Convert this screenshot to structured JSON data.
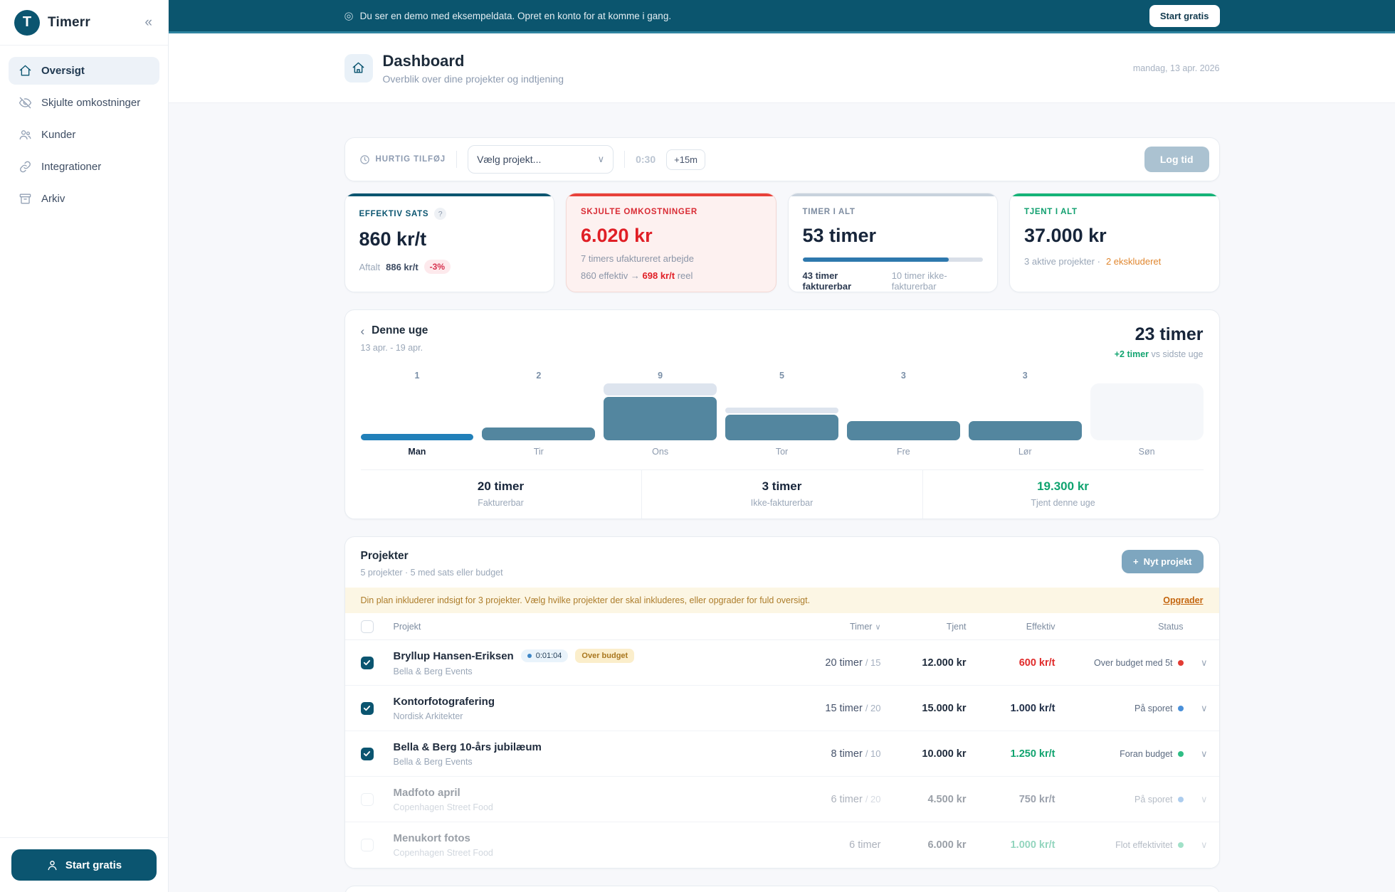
{
  "icons": {
    "collapse": "«",
    "eye_demo": "◎",
    "chevron_down": "∨",
    "sort_down": "∨",
    "back": "‹",
    "plus": "+",
    "dot": "●"
  },
  "banner": {
    "message": "Du ser en demo med eksempeldata. Opret en konto for at komme i gang.",
    "cta": "Start gratis"
  },
  "sidebar": {
    "logo_letter": "T",
    "brand": "Timerr",
    "items": [
      {
        "label": "Oversigt",
        "icon": "home",
        "active": true
      },
      {
        "label": "Skjulte omkostninger",
        "icon": "eye-off",
        "active": false
      },
      {
        "label": "Kunder",
        "icon": "users",
        "active": false
      },
      {
        "label": "Integrationer",
        "icon": "link",
        "active": false
      },
      {
        "label": "Arkiv",
        "icon": "archive",
        "active": false
      }
    ],
    "cta": "Start gratis"
  },
  "header": {
    "title": "Dashboard",
    "subtitle": "Overblik over dine projekter og indtjening",
    "date": "mandag, 13 apr. 2026"
  },
  "quick_add": {
    "label": "HURTIG TILFØJ",
    "project_select": "Vælg projekt...",
    "duration": "0:30",
    "increment": "+15m",
    "submit": "Log tid"
  },
  "stats": {
    "0": {
      "label": "EFFEKTIV SATS",
      "help": "?",
      "value": "860 kr/t",
      "accent": "#0b5570",
      "foot_prefix": "Aftalt",
      "foot_agreed": "886 kr/t",
      "foot_delta": "-3%"
    },
    "1": {
      "label": "SKJULTE OMKOSTNINGER",
      "value": "6.020 kr",
      "accent": "#e8413a",
      "line1": "7 timers ufaktureret arbejde",
      "line2_prefix": "860 effektiv",
      "line2_arrow": "→",
      "line2_value": "698 kr/t",
      "line2_suffix": "reel"
    },
    "2": {
      "label": "TIMER I ALT",
      "value": "53 timer",
      "accent": "#c8d2dd",
      "progress_pct": 81,
      "foot_strong": "43 timer fakturerbar",
      "foot_muted": "10 timer ikke-fakturerbar"
    },
    "3": {
      "label": "TJENT I ALT",
      "value": "37.000 kr",
      "accent": "#15b377",
      "foot_muted": "3 aktive projekter ·",
      "foot_accent": "2 ekskluderet"
    }
  },
  "week": {
    "title": "Denne uge",
    "range": "13 apr. - 19 apr.",
    "total": "23 timer",
    "delta": "+2 timer",
    "delta_suffix": "vs sidste uge",
    "summary": {
      "0": {
        "value": "20 timer",
        "label": "Fakturerbar",
        "green": false
      },
      "1": {
        "value": "3 timer",
        "label": "Ikke-fakturerbar",
        "green": false
      },
      "2": {
        "value": "19.300 kr",
        "label": "Tjent denne uge",
        "green": true
      }
    }
  },
  "chart_data": {
    "type": "bar",
    "categories": [
      "Man",
      "Tir",
      "Ons",
      "Tor",
      "Fre",
      "Lør",
      "Søn"
    ],
    "series": [
      {
        "name": "fakturerbar",
        "values": [
          1,
          2,
          7,
          4,
          3,
          3,
          0
        ]
      },
      {
        "name": "ikke-fakturerbar",
        "values": [
          0,
          0,
          2,
          1,
          0,
          0,
          0
        ]
      }
    ],
    "totals": [
      1,
      2,
      9,
      5,
      3,
      3,
      0
    ],
    "active_day": "Man",
    "ylim": [
      0,
      9
    ],
    "colors": {
      "bar": "#53869f",
      "bar_active": "#2180b9",
      "bar_nonbillable": "#dde4ee",
      "empty_track": "#f5f7fa"
    }
  },
  "projects": {
    "title": "Projekter",
    "subtitle": "5 projekter · 5 med sats eller budget",
    "new_button": "Nyt projekt",
    "notice": "Din plan inkluderer indsigt for 3 projekter. Vælg hvilke projekter der skal inkluderes, eller opgrader for fuld oversigt.",
    "notice_link": "Opgrader",
    "columns": {
      "project": "Projekt",
      "hours": "Timer",
      "earned": "Tjent",
      "rate": "Effektiv",
      "status": "Status"
    },
    "rows": [
      {
        "name": "Bryllup Hansen-Eriksen",
        "client": "Bella & Berg Events",
        "timer_badge": "0:01:04",
        "tag": "Over budget",
        "hours": "20 timer",
        "budget": "/ 15",
        "earned": "12.000 kr",
        "rate": "600 kr/t",
        "rate_color": "red",
        "status": "Over budget med 5t",
        "status_color": "#e23b33",
        "checked": true,
        "included": true
      },
      {
        "name": "Kontorfotografering",
        "client": "Nordisk Arkitekter",
        "hours": "15 timer",
        "budget": "/ 20",
        "earned": "15.000 kr",
        "rate": "1.000 kr/t",
        "rate_color": "dark",
        "status": "På sporet",
        "status_color": "#4a90d9",
        "checked": true,
        "included": true
      },
      {
        "name": "Bella & Berg 10-års jubilæum",
        "client": "Bella & Berg Events",
        "hours": "8 timer",
        "budget": "/ 10",
        "earned": "10.000 kr",
        "rate": "1.250 kr/t",
        "rate_color": "green",
        "status": "Foran budget",
        "status_color": "#2fbd85",
        "checked": true,
        "included": true
      },
      {
        "name": "Madfoto april",
        "client": "Copenhagen Street Food",
        "hours": "6 timer",
        "budget": "/ 20",
        "earned": "4.500 kr",
        "rate": "750 kr/t",
        "rate_color": "dark",
        "status": "På sporet",
        "status_color": "#4a90d9",
        "checked": false,
        "included": false
      },
      {
        "name": "Menukort fotos",
        "client": "Copenhagen Street Food",
        "hours": "6 timer",
        "budget": "",
        "earned": "6.000 kr",
        "rate": "1.000 kr/t",
        "rate_color": "green",
        "status": "Flot effektivitet",
        "status_color": "#2fbd85",
        "checked": false,
        "included": false
      }
    ]
  }
}
